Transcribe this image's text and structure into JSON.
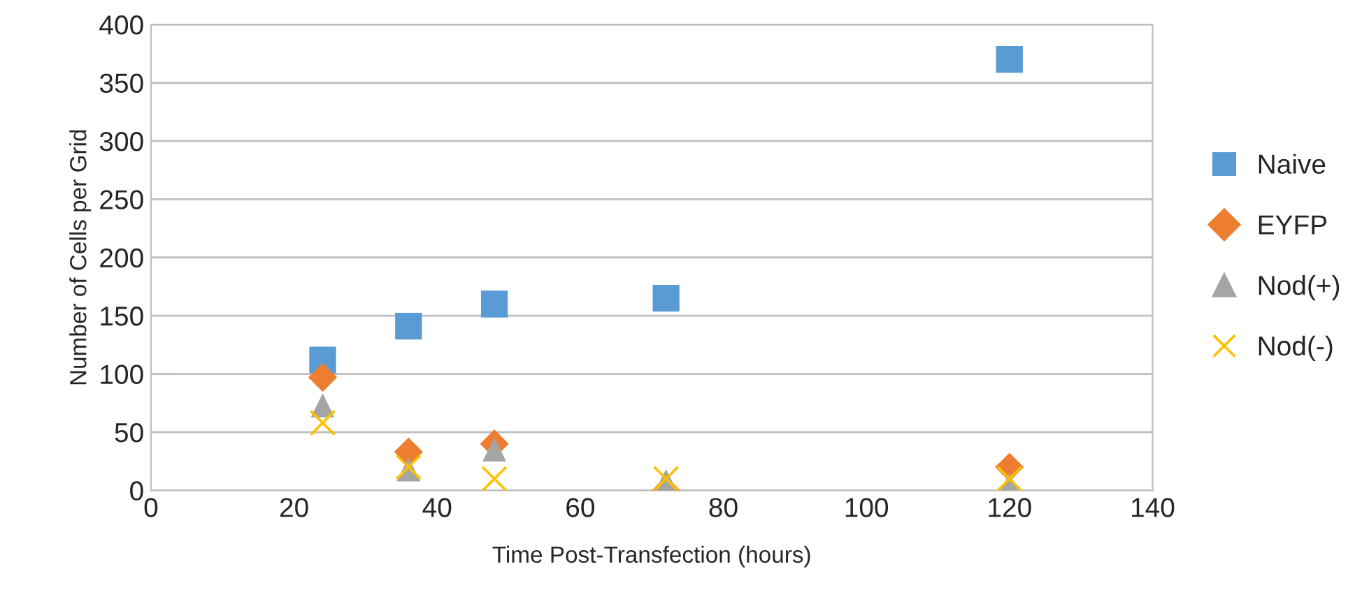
{
  "chart_data": {
    "type": "scatter",
    "xlabel": "Time Post-Transfection (hours)",
    "ylabel": "Number of Cells per Grid",
    "x": [
      24,
      36,
      48,
      72,
      120
    ],
    "series": [
      {
        "name": "Naive",
        "color": "#5b9bd5",
        "marker": "square",
        "values": [
          112,
          141,
          160,
          165,
          370
        ]
      },
      {
        "name": "EYFP",
        "color": "#ed7d31",
        "marker": "diamond",
        "values": [
          97,
          33,
          40,
          0,
          20
        ]
      },
      {
        "name": "Nod(+)",
        "color": "#a5a5a5",
        "marker": "triangle",
        "values": [
          73,
          18,
          35,
          8,
          5
        ]
      },
      {
        "name": "Nod(-)",
        "color": "#ffc000",
        "marker": "cross",
        "values": [
          58,
          20,
          10,
          10,
          10
        ]
      }
    ],
    "xlim": [
      0,
      140
    ],
    "xticks": [
      0,
      20,
      40,
      60,
      80,
      100,
      120,
      140
    ],
    "ylim": [
      0,
      400
    ],
    "yticks": [
      0,
      50,
      100,
      150,
      200,
      250,
      300,
      350,
      400
    ],
    "grid": "y",
    "legend": "right"
  }
}
